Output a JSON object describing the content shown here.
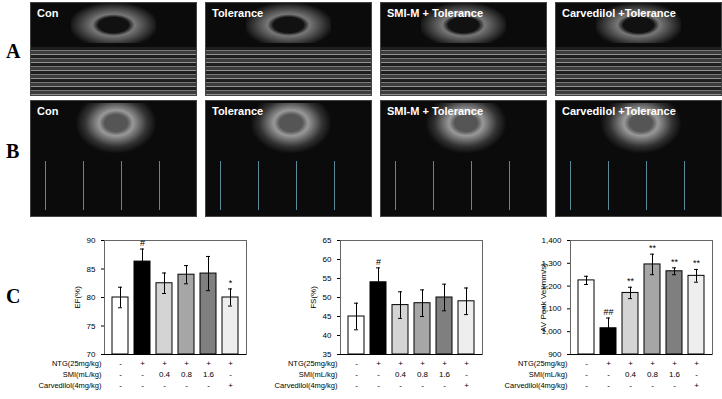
{
  "panel_labels": [
    "A",
    "B",
    "C"
  ],
  "image_panels": [
    {
      "label": "A",
      "captions": [
        "Con",
        "Tolerance",
        "SMI-M + Tolerance",
        "Carvedilol +Tolerance"
      ]
    },
    {
      "label": "B",
      "captions": [
        "Con",
        "Tolerance",
        "SMI-M + Tolerance",
        "Carvedilol +Tolerance"
      ]
    }
  ],
  "chart_data": [
    {
      "type": "bar",
      "y_label": "EF(%)",
      "categories": [
        null,
        null,
        null,
        null,
        null,
        null
      ],
      "values": [
        80,
        86.3,
        82.5,
        84,
        84.2,
        80
      ],
      "errors": [
        1.8,
        2.2,
        1.8,
        1.6,
        3,
        1.5
      ],
      "significance": [
        null,
        "#",
        null,
        null,
        null,
        "*"
      ],
      "colors": [
        "#ffffff",
        "#000000",
        "#d4d4d4",
        "#a6a6a6",
        "#7f7f7f",
        "#eeeeee"
      ],
      "ylim": [
        70,
        90
      ],
      "yticks": [
        70,
        75,
        80,
        85,
        90
      ],
      "treatment_table": [
        {
          "label": "NTG(25mg/kg)",
          "cells": [
            "-",
            "+",
            "+",
            "+",
            "+",
            "+"
          ]
        },
        {
          "label": "SMI(mL/kg)",
          "cells": [
            "-",
            "-",
            "0.4",
            "0.8",
            "1.6",
            "-"
          ]
        },
        {
          "label": "Carvedilol(4mg/kg)",
          "cells": [
            "-",
            "-",
            "-",
            "-",
            "-",
            "+"
          ]
        }
      ]
    },
    {
      "type": "bar",
      "y_label": "FS(%)",
      "categories": [
        null,
        null,
        null,
        null,
        null,
        null
      ],
      "values": [
        45,
        54,
        48,
        48.5,
        50,
        49
      ],
      "errors": [
        3.5,
        3.8,
        3.5,
        3.5,
        3.5,
        3.5
      ],
      "significance": [
        null,
        "#",
        null,
        null,
        null,
        null
      ],
      "colors": [
        "#ffffff",
        "#000000",
        "#d4d4d4",
        "#a6a6a6",
        "#7f7f7f",
        "#eeeeee"
      ],
      "ylim": [
        35,
        65
      ],
      "yticks": [
        35,
        40,
        45,
        50,
        55,
        60,
        65
      ],
      "treatment_table": [
        {
          "label": "NTG(25mg/kg)",
          "cells": [
            "-",
            "+",
            "+",
            "+",
            "+",
            "+"
          ]
        },
        {
          "label": "SMI(mL/kg)",
          "cells": [
            "-",
            "-",
            "0.4",
            "0.8",
            "1.6",
            "-"
          ]
        },
        {
          "label": "Carvedilol(4mg/kg)",
          "cells": [
            "-",
            "-",
            "-",
            "-",
            "-",
            "+"
          ]
        }
      ]
    },
    {
      "type": "bar",
      "y_label": "AV Peak Vel(mm/s)",
      "categories": [
        null,
        null,
        null,
        null,
        null,
        null
      ],
      "values": [
        1225,
        1015,
        1170,
        1295,
        1265,
        1245
      ],
      "errors": [
        18,
        45,
        25,
        45,
        15,
        28
      ],
      "significance": [
        null,
        "##",
        "**",
        "**",
        "**",
        "**"
      ],
      "colors": [
        "#ffffff",
        "#000000",
        "#d4d4d4",
        "#a6a6a6",
        "#7f7f7f",
        "#eeeeee"
      ],
      "ylim": [
        900,
        1400
      ],
      "yticks": [
        900,
        1000,
        1100,
        1200,
        1300,
        1400
      ],
      "treatment_table": [
        {
          "label": "NTG(25mg/kg)",
          "cells": [
            "-",
            "+",
            "+",
            "+",
            "+",
            "+"
          ]
        },
        {
          "label": "SMI(mL/kg)",
          "cells": [
            "-",
            "-",
            "0.4",
            "0.8",
            "1.6",
            "-"
          ]
        },
        {
          "label": "Carvedilol(4mg/kg)",
          "cells": [
            "-",
            "-",
            "-",
            "-",
            "-",
            "+"
          ]
        }
      ]
    }
  ]
}
